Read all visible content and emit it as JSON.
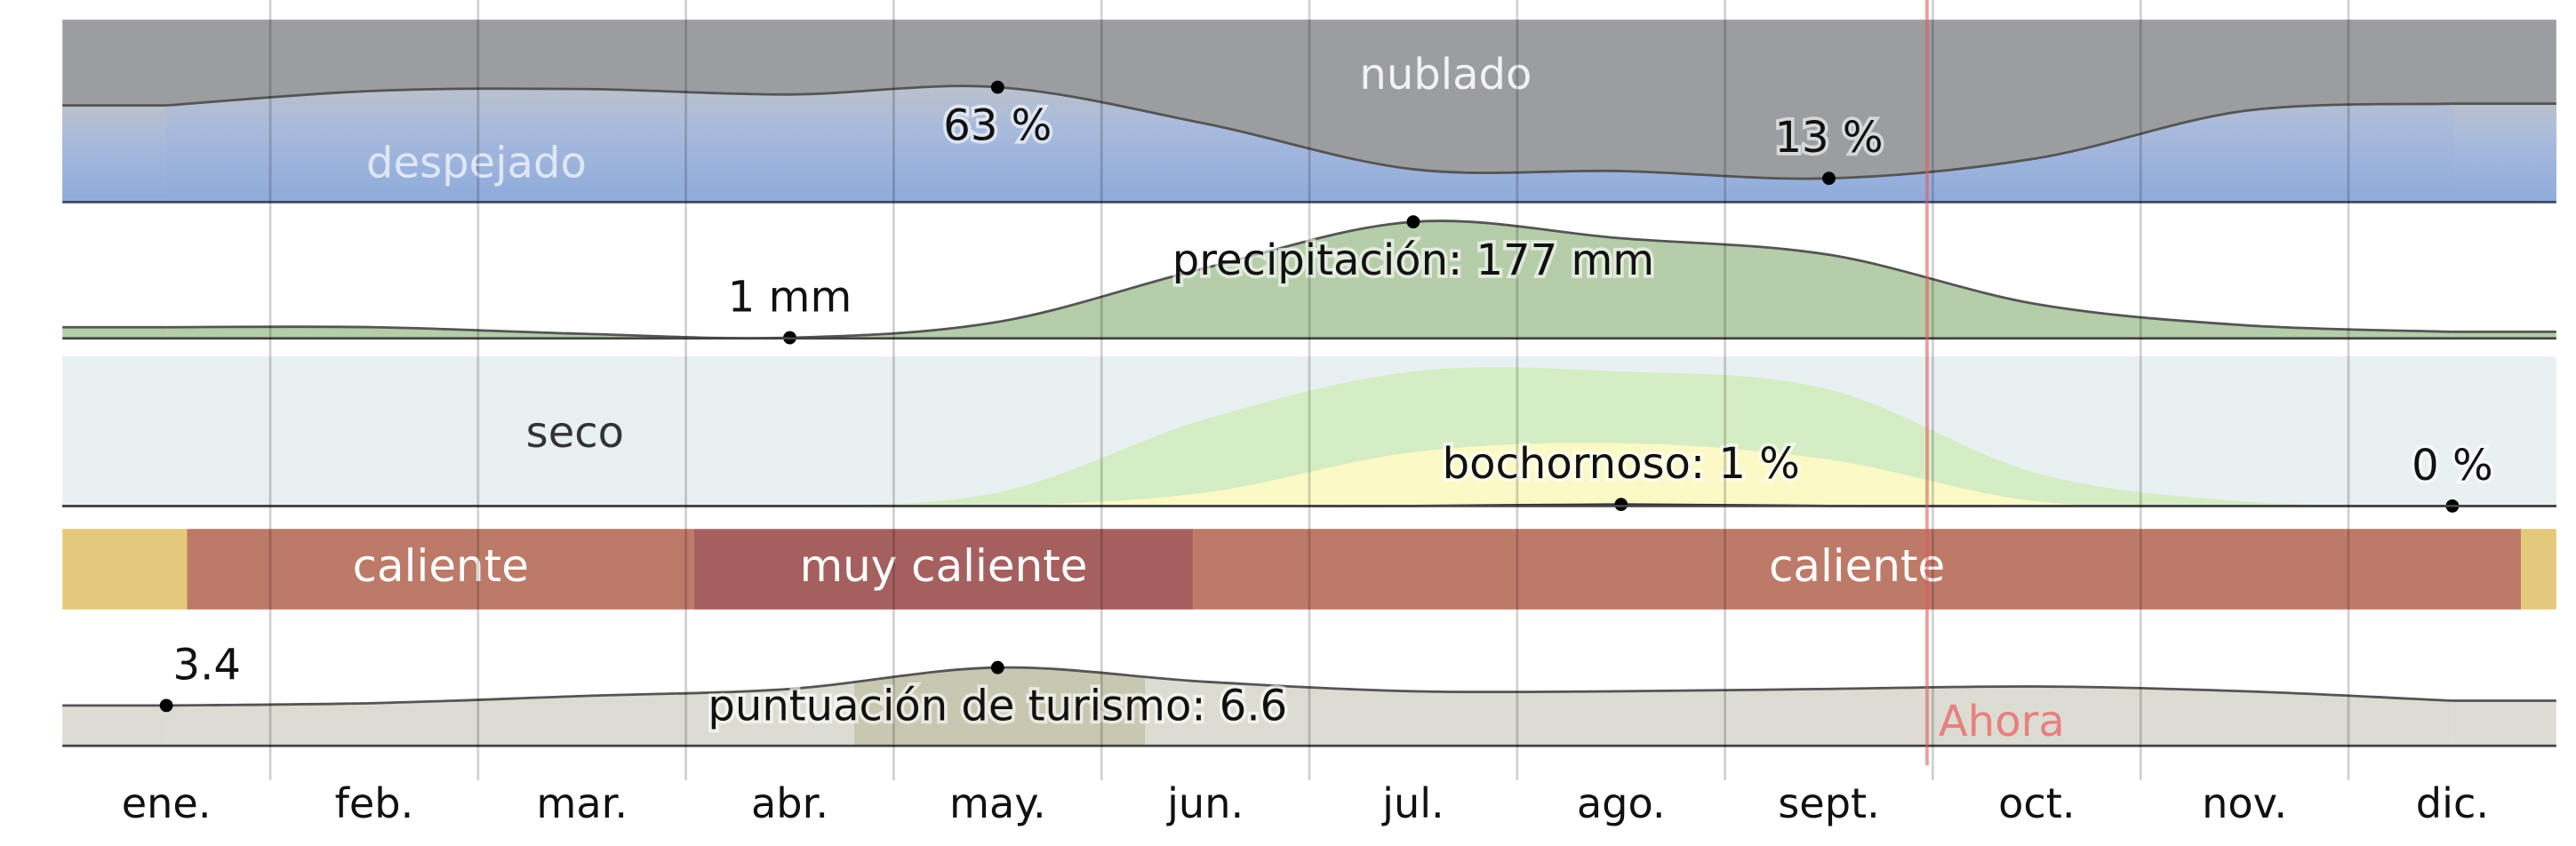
{
  "chart_data": [
    {
      "type": "area",
      "annotations": [
        "nublado",
        "despejado"
      ],
      "background": "#9b9da1",
      "ylim": [
        0,
        100
      ],
      "series": [
        {
          "color": "#8fabdb",
          "values": [
            53,
            61,
            62,
            59,
            63,
            43,
            18,
            17,
            13,
            24,
            50,
            54
          ],
          "value_labels": [
            null,
            null,
            null,
            null,
            "63 %",
            null,
            null,
            null,
            "13 %",
            null,
            null,
            null
          ]
        }
      ]
    },
    {
      "type": "area",
      "ylim": [
        0,
        207
      ],
      "series": [
        {
          "color": "#b5cda9",
          "values": [
            17,
            17,
            7,
            1,
            25,
            107,
            177,
            152,
            127,
            52,
            20,
            10
          ],
          "value_labels": [
            null,
            null,
            null,
            "1 mm",
            null,
            null,
            "precipitación: 177 mm",
            null,
            null,
            null,
            null,
            null
          ]
        }
      ]
    },
    {
      "type": "area",
      "annotations": [
        "seco"
      ],
      "background": "#e9f0f2",
      "ylim": [
        0,
        100
      ],
      "series": [
        {
          "color": "#d5edc4",
          "values": [
            0,
            0,
            0,
            0,
            9,
            58,
            90,
            90,
            78,
            22,
            3,
            0
          ]
        },
        {
          "color": "#fbf9c6",
          "values": [
            0,
            0,
            0,
            0,
            0,
            9,
            36,
            42,
            31,
            3,
            0,
            0
          ]
        },
        {
          "color": "#333333",
          "values": [
            0,
            0,
            0,
            0,
            0,
            0,
            0,
            1,
            0,
            0,
            0,
            0
          ],
          "value_labels": [
            null,
            null,
            null,
            null,
            null,
            null,
            null,
            "bochornoso: 1 %",
            null,
            null,
            null,
            "0 %"
          ]
        }
      ]
    },
    {
      "type": "band",
      "segments": [
        {
          "start": 0,
          "end": 0.6,
          "color": "#e4c97c",
          "label": null
        },
        {
          "start": 0.6,
          "end": 3.04,
          "color": "#bd7a68",
          "label": "caliente"
        },
        {
          "start": 3.04,
          "end": 5.44,
          "color": "#a65f5f",
          "label": "muy caliente"
        },
        {
          "start": 5.44,
          "end": 11.83,
          "color": "#bd7a68",
          "label": "caliente"
        },
        {
          "start": 11.83,
          "end": 12,
          "color": "#e4c97c",
          "label": null
        }
      ]
    },
    {
      "type": "area",
      "ylim": [
        0,
        11.5
      ],
      "now_label": "Ahora",
      "categories": [
        "ene.",
        "feb.",
        "mar.",
        "abr.",
        "may.",
        "jun.",
        "jul.",
        "ago.",
        "sept.",
        "oct.",
        "nov.",
        "dic."
      ],
      "series": [
        {
          "color": "#dcdcd3",
          "values": [
            3.4,
            3.6,
            4.2,
            4.8,
            6.6,
            5.4,
            4.6,
            4.6,
            4.8,
            5.0,
            4.6,
            3.8
          ],
          "value_labels": [
            "3.4",
            null,
            null,
            null,
            "puntuación de turismo: 6.6",
            null,
            null,
            null,
            null,
            null,
            null,
            null
          ]
        }
      ]
    }
  ]
}
